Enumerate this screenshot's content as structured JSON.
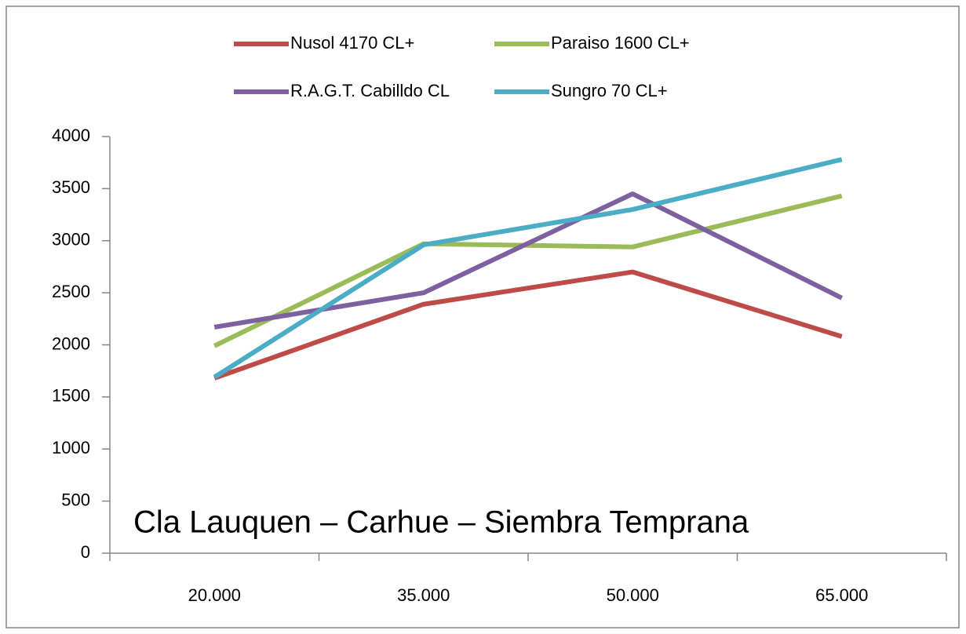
{
  "chart_data": {
    "type": "line",
    "annotation": "Cla Lauquen – Carhue – Siembra Temprana",
    "categories": [
      "20.000",
      "35.000",
      "50.000",
      "65.000"
    ],
    "series": [
      {
        "name": "Nusol 4170 CL+",
        "color": "#be4b48",
        "values": [
          1680,
          2390,
          2700,
          2080
        ]
      },
      {
        "name": "Paraiso 1600 CL+",
        "color": "#9bbb59",
        "values": [
          1990,
          2970,
          2940,
          3430
        ]
      },
      {
        "name": "R.A.G.T. Cabilldo CL",
        "color": "#7d60a0",
        "values": [
          2170,
          2500,
          3450,
          2450
        ]
      },
      {
        "name": "Sungro 70 CL+",
        "color": "#4bacc6",
        "values": [
          1690,
          2960,
          3300,
          3780
        ]
      }
    ],
    "ylim": [
      0,
      4000
    ],
    "yticks": [
      0,
      500,
      1000,
      1500,
      2000,
      2500,
      3000,
      3500,
      4000
    ],
    "grid": false,
    "legend": "top"
  }
}
